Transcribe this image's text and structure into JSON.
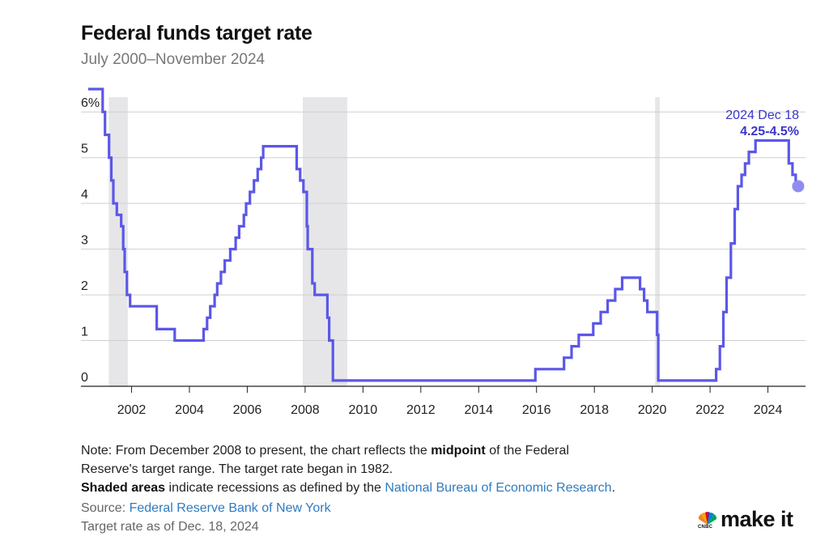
{
  "header": {
    "title": "Federal funds target rate",
    "subtitle": "July 2000–November 2024"
  },
  "chart_data": {
    "type": "line",
    "title": "Federal funds target rate",
    "subtitle": "July 2000–November 2024",
    "xlabel": "",
    "ylabel": "",
    "x_ticks": [
      "2002",
      "2004",
      "2006",
      "2008",
      "2010",
      "2012",
      "2014",
      "2016",
      "2018",
      "2020",
      "2022",
      "2024"
    ],
    "y_ticks": [
      "0",
      "1",
      "2",
      "3",
      "4",
      "5",
      "6%"
    ],
    "xlim": [
      2000.25,
      2025.3
    ],
    "ylim": [
      0,
      6.5
    ],
    "grid": "horizontal",
    "line_color": "#5b57e8",
    "recession_color": "#e6e6e9",
    "recessions": [
      {
        "start": 2001.21,
        "end": 2001.87
      },
      {
        "start": 2007.92,
        "end": 2009.46
      },
      {
        "start": 2020.1,
        "end": 2020.26
      }
    ],
    "series": [
      {
        "steps": [
          [
            2000.5,
            6.5
          ],
          [
            2001.0,
            6.0
          ],
          [
            2001.08,
            5.5
          ],
          [
            2001.22,
            5.0
          ],
          [
            2001.3,
            4.5
          ],
          [
            2001.37,
            4.0
          ],
          [
            2001.49,
            3.75
          ],
          [
            2001.64,
            3.5
          ],
          [
            2001.71,
            3.0
          ],
          [
            2001.76,
            2.5
          ],
          [
            2001.84,
            2.0
          ],
          [
            2001.95,
            1.75
          ],
          [
            2002.87,
            1.25
          ],
          [
            2003.49,
            1.0
          ],
          [
            2004.49,
            1.25
          ],
          [
            2004.61,
            1.5
          ],
          [
            2004.72,
            1.75
          ],
          [
            2004.87,
            2.0
          ],
          [
            2004.96,
            2.25
          ],
          [
            2005.09,
            2.5
          ],
          [
            2005.22,
            2.75
          ],
          [
            2005.41,
            3.0
          ],
          [
            2005.6,
            3.25
          ],
          [
            2005.72,
            3.5
          ],
          [
            2005.88,
            3.75
          ],
          [
            2005.96,
            4.0
          ],
          [
            2006.09,
            4.25
          ],
          [
            2006.23,
            4.5
          ],
          [
            2006.36,
            4.75
          ],
          [
            2006.48,
            5.0
          ],
          [
            2006.55,
            5.25
          ],
          [
            2007.71,
            4.75
          ],
          [
            2007.83,
            4.5
          ],
          [
            2007.94,
            4.25
          ],
          [
            2008.06,
            3.5
          ],
          [
            2008.09,
            3.0
          ],
          [
            2008.25,
            2.25
          ],
          [
            2008.33,
            2.0
          ],
          [
            2008.77,
            1.5
          ],
          [
            2008.83,
            1.0
          ],
          [
            2008.96,
            0.125
          ],
          [
            2015.96,
            0.375
          ],
          [
            2016.95,
            0.625
          ],
          [
            2017.21,
            0.875
          ],
          [
            2017.46,
            1.125
          ],
          [
            2017.96,
            1.375
          ],
          [
            2018.22,
            1.625
          ],
          [
            2018.46,
            1.875
          ],
          [
            2018.72,
            2.125
          ],
          [
            2018.96,
            2.375
          ],
          [
            2019.58,
            2.125
          ],
          [
            2019.72,
            1.875
          ],
          [
            2019.83,
            1.625
          ],
          [
            2020.17,
            1.125
          ],
          [
            2020.21,
            0.125
          ],
          [
            2022.21,
            0.375
          ],
          [
            2022.34,
            0.875
          ],
          [
            2022.46,
            1.625
          ],
          [
            2022.57,
            2.375
          ],
          [
            2022.72,
            3.125
          ],
          [
            2022.85,
            3.875
          ],
          [
            2022.96,
            4.375
          ],
          [
            2023.09,
            4.625
          ],
          [
            2023.21,
            4.875
          ],
          [
            2023.34,
            5.125
          ],
          [
            2023.57,
            5.375
          ],
          [
            2024.72,
            4.875
          ],
          [
            2024.85,
            4.625
          ],
          [
            2024.96,
            4.375
          ],
          [
            2024.99,
            4.375
          ]
        ]
      }
    ],
    "endpoint": {
      "x": 2024.99,
      "y": 4.375
    }
  },
  "annotation": {
    "date": "2024 Dec 18",
    "value": "4.25-4.5%"
  },
  "notes": {
    "line1_a": "Note: From December 2008 to present, the chart reflects the ",
    "line1_bold": "midpoint",
    "line1_b": " of the Federal",
    "line2": "Reserve's target range. The target rate began in 1982.",
    "line3_bold": "Shaded areas",
    "line3_a": " indicate recessions as defined by the ",
    "line3_link": "National Bureau of Economic Research",
    "line3_b": "."
  },
  "source": {
    "label": "Source: ",
    "link": "Federal Reserve Bank of New York"
  },
  "as_of": "Target rate as of Dec. 18, 2024",
  "logo": {
    "brand": "CNBC",
    "text": "make it",
    "icon": "peacock-icon"
  }
}
